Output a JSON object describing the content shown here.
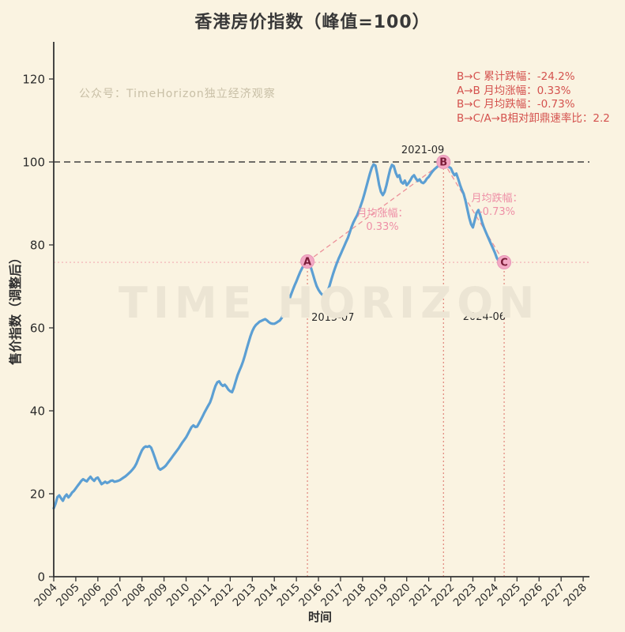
{
  "title": "香港房价指数（峰值=100）",
  "watermarks": {
    "wechat": "公众号：TimeHorizon独立经济观察",
    "big": "TIME HORIZON"
  },
  "stats_lines": [
    "B→C 累计跌幅：-24.2%",
    "A→B 月均涨幅：0.33%",
    "B→C 月均跌幅：-0.73%",
    "B→C/A→B相对卸鼎速率比：2.2"
  ],
  "chart_data": {
    "type": "line",
    "title": "香港房价指数（峰值=100）",
    "xlabel": "时间",
    "ylabel": "售价指数（调整后）",
    "x_ticks": [
      2004,
      2005,
      2006,
      2007,
      2008,
      2009,
      2010,
      2011,
      2012,
      2013,
      2014,
      2015,
      2016,
      2017,
      2018,
      2019,
      2020,
      2021,
      2022,
      2023,
      2024,
      2025,
      2026,
      2027,
      2028
    ],
    "y_ticks": [
      0,
      20,
      40,
      60,
      80,
      100,
      120
    ],
    "xlim": [
      2004,
      2028.3
    ],
    "ylim": [
      0,
      129
    ],
    "grid": false,
    "peak_reference": 100,
    "c_level_reference": 75.8,
    "series": {
      "name": "香港房价指数（峰值=100）",
      "start_year": 2004,
      "points_per_year": 12,
      "values": [
        16.5,
        17.6,
        19.2,
        19.6,
        18.9,
        18.3,
        19.3,
        19.8,
        19.1,
        19.6,
        20.3,
        20.7,
        21.3,
        21.9,
        22.5,
        23.1,
        23.5,
        23.2,
        23.0,
        23.6,
        24.1,
        23.5,
        23.1,
        23.7,
        23.9,
        23.1,
        22.3,
        22.6,
        22.9,
        22.6,
        22.8,
        23.1,
        23.2,
        22.9,
        23.0,
        23.1,
        23.3,
        23.6,
        23.9,
        24.2,
        24.6,
        25.0,
        25.4,
        25.9,
        26.5,
        27.3,
        28.4,
        29.5,
        30.5,
        31.1,
        31.4,
        31.3,
        31.5,
        31.1,
        30.0,
        28.7,
        27.4,
        26.2,
        25.8,
        26.1,
        26.4,
        26.8,
        27.4,
        28.0,
        28.6,
        29.2,
        29.8,
        30.4,
        31.0,
        31.7,
        32.4,
        33.0,
        33.6,
        34.4,
        35.3,
        36.1,
        36.5,
        36.1,
        36.2,
        37.0,
        37.8,
        38.7,
        39.6,
        40.4,
        41.2,
        42.0,
        43.2,
        44.7,
        46.0,
        46.9,
        47.1,
        46.4,
        46.0,
        46.3,
        45.8,
        45.1,
        44.7,
        44.5,
        45.6,
        47.1,
        48.6,
        49.7,
        50.7,
        51.9,
        53.4,
        55.0,
        56.5,
        58.0,
        59.2,
        60.1,
        60.7,
        61.1,
        61.5,
        61.7,
        61.9,
        62.1,
        61.8,
        61.4,
        61.1,
        61.0,
        61.0,
        61.2,
        61.5,
        61.8,
        62.4,
        63.3,
        64.3,
        65.4,
        66.6,
        67.9,
        69.1,
        70.2,
        71.2,
        72.3,
        73.4,
        74.3,
        75.1,
        75.7,
        76.0,
        75.5,
        74.4,
        72.9,
        71.4,
        70.1,
        69.2,
        68.5,
        68.0,
        67.8,
        68.1,
        68.9,
        70.1,
        71.6,
        73.1,
        74.4,
        75.6,
        76.7,
        77.7,
        78.7,
        79.7,
        80.7,
        81.7,
        83.0,
        84.3,
        85.4,
        86.3,
        87.1,
        88.2,
        89.5,
        90.8,
        92.3,
        93.9,
        95.6,
        97.2,
        98.6,
        99.4,
        99.1,
        97.0,
        94.5,
        92.8,
        92.0,
        92.8,
        94.4,
        96.4,
        98.2,
        99.3,
        99.0,
        97.4,
        96.4,
        96.8,
        95.2,
        94.8,
        95.5,
        94.4,
        94.9,
        95.6,
        96.4,
        96.8,
        96.0,
        95.4,
        95.8,
        95.1,
        94.9,
        95.3,
        96.0,
        96.4,
        97.1,
        97.7,
        98.2,
        98.6,
        99.0,
        99.3,
        99.6,
        100.0,
        99.5,
        99.1,
        98.8,
        98.5,
        97.5,
        96.8,
        97.2,
        95.9,
        94.5,
        93.3,
        92.3,
        90.6,
        88.6,
        86.6,
        85.0,
        84.2,
        85.9,
        87.7,
        88.4,
        87.1,
        85.5,
        84.2,
        83.1,
        82.1,
        81.1,
        80.1,
        79.1,
        78.1,
        76.9,
        76.1,
        75.9,
        76.9,
        75.8
      ]
    },
    "markers": [
      {
        "label": "A",
        "date": "2015-07",
        "year": 2015.5,
        "value": 76.0
      },
      {
        "label": "B",
        "date": "2021-09",
        "year": 2021.667,
        "value": 100.0
      },
      {
        "label": "C",
        "date": "2024-06",
        "year": 2024.417,
        "value": 75.8
      }
    ],
    "trend_lines": [
      [
        "A",
        "B"
      ],
      [
        "B",
        "C"
      ]
    ],
    "annotations": {
      "rise": {
        "line1": "月均涨幅：",
        "line2": "0.33%"
      },
      "fall": {
        "line1": "月均跌幅：",
        "line2": "-0.73%"
      }
    },
    "colors": {
      "background": "#FAF3E1",
      "line": "#5C9FD3",
      "peak_dash": "#3F3F3F",
      "marker_fill": "#F3A9C4",
      "marker_edge": "#E795B8",
      "marker_text": "#7B1C38",
      "trend": "#EC9099",
      "guide": "#DD7A70",
      "c_line": "#F2ADB4",
      "stats_text": "#D4524E",
      "annotation_text": "#EE8FA6",
      "axis_text": "#2B2B2B",
      "watermark": "#ECE5D4",
      "wechat_text": "#C8BFA6"
    }
  }
}
